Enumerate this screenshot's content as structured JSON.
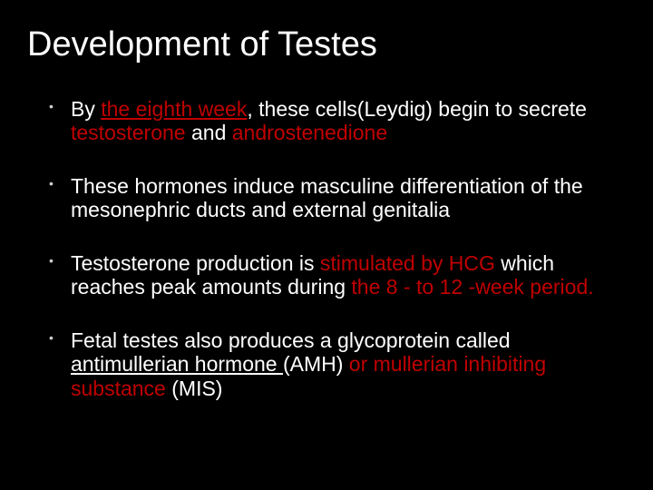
{
  "slide": {
    "title": "Development of Testes",
    "title_fontsize": 38,
    "title_color": "#ffffff",
    "background_color": "#000000",
    "body_color": "#ffffff",
    "highlight_color": "#c00000",
    "body_fontsize": 23,
    "bullets": [
      {
        "segments": [
          {
            "text": "By ",
            "highlight": false,
            "underline": false
          },
          {
            "text": "the eighth week",
            "highlight": true,
            "underline": true
          },
          {
            "text": ", these cells(Leydig) begin to secrete ",
            "highlight": false,
            "underline": false
          },
          {
            "text": "testosterone",
            "highlight": true,
            "underline": false
          },
          {
            "text": " and ",
            "highlight": false,
            "underline": false
          },
          {
            "text": "androstenedione",
            "highlight": true,
            "underline": false
          }
        ]
      },
      {
        "segments": [
          {
            "text": "These hormones induce masculine differentiation of the mesonephric ducts and external genitalia",
            "highlight": false,
            "underline": false
          }
        ]
      },
      {
        "segments": [
          {
            "text": "Testosterone production is ",
            "highlight": false,
            "underline": false
          },
          {
            "text": "stimulated by HCG ",
            "highlight": true,
            "underline": false
          },
          {
            "text": "which reaches peak amounts during ",
            "highlight": false,
            "underline": false
          },
          {
            "text": "the 8 - to 12 -week period.",
            "highlight": true,
            "underline": false
          }
        ]
      },
      {
        "segments": [
          {
            "text": "Fetal testes also produces a glycoprotein called ",
            "highlight": false,
            "underline": false
          },
          {
            "text": "antimullerian hormone ",
            "highlight": false,
            "underline": true
          },
          {
            "text": "(AMH) ",
            "highlight": false,
            "underline": false
          },
          {
            "text": "or mullerian inhibiting substance ",
            "highlight": true,
            "underline": false
          },
          {
            "text": "(MIS)",
            "highlight": false,
            "underline": false
          }
        ]
      }
    ]
  }
}
